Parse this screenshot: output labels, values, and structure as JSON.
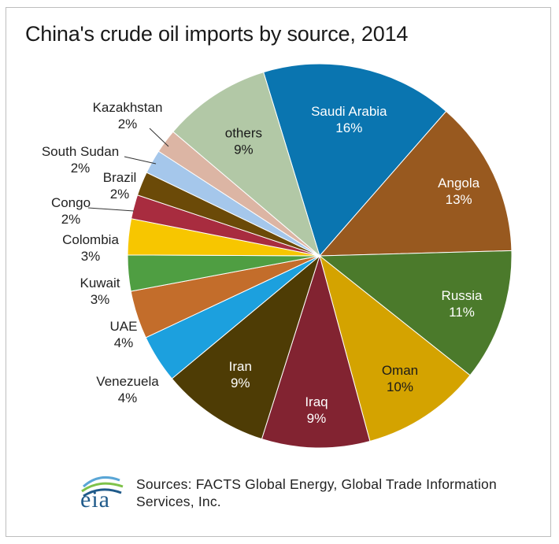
{
  "chart_data": {
    "type": "pie",
    "title": "China's crude oil imports by source, 2014",
    "slices": [
      {
        "name": "Saudi Arabia",
        "value": 16,
        "label": "16%",
        "color": "#0a75b0"
      },
      {
        "name": "Angola",
        "value": 13,
        "label": "13%",
        "color": "#98591f"
      },
      {
        "name": "Russia",
        "value": 11,
        "label": "11%",
        "color": "#4b7a2b"
      },
      {
        "name": "Oman",
        "value": 10,
        "label": "10%",
        "color": "#d4a300"
      },
      {
        "name": "Iraq",
        "value": 9,
        "label": "9%",
        "color": "#822331"
      },
      {
        "name": "Iran",
        "value": 9,
        "label": "9%",
        "color": "#4e3c05"
      },
      {
        "name": "Venezuela",
        "value": 4,
        "label": "4%",
        "color": "#1ca0de"
      },
      {
        "name": "UAE",
        "value": 4,
        "label": "4%",
        "color": "#c36d2b"
      },
      {
        "name": "Kuwait",
        "value": 3,
        "label": "3%",
        "color": "#4f9e42"
      },
      {
        "name": "Colombia",
        "value": 3,
        "label": "3%",
        "color": "#f7c600"
      },
      {
        "name": "Congo",
        "value": 2,
        "label": "2%",
        "color": "#a82c3f"
      },
      {
        "name": "Brazil",
        "value": 2,
        "label": "2%",
        "color": "#6b4a08"
      },
      {
        "name": "South Sudan",
        "value": 2,
        "label": "2%",
        "color": "#a5c7eb"
      },
      {
        "name": "Kazakhstan",
        "value": 2,
        "label": "2%",
        "color": "#dcb5a4"
      },
      {
        "name": "others",
        "value": 9,
        "label": "9%",
        "color": "#b2c8a6"
      }
    ]
  },
  "source_text": "Sources: FACTS Global Energy, Global Trade Information Services, Inc.",
  "logo_text": "eia"
}
